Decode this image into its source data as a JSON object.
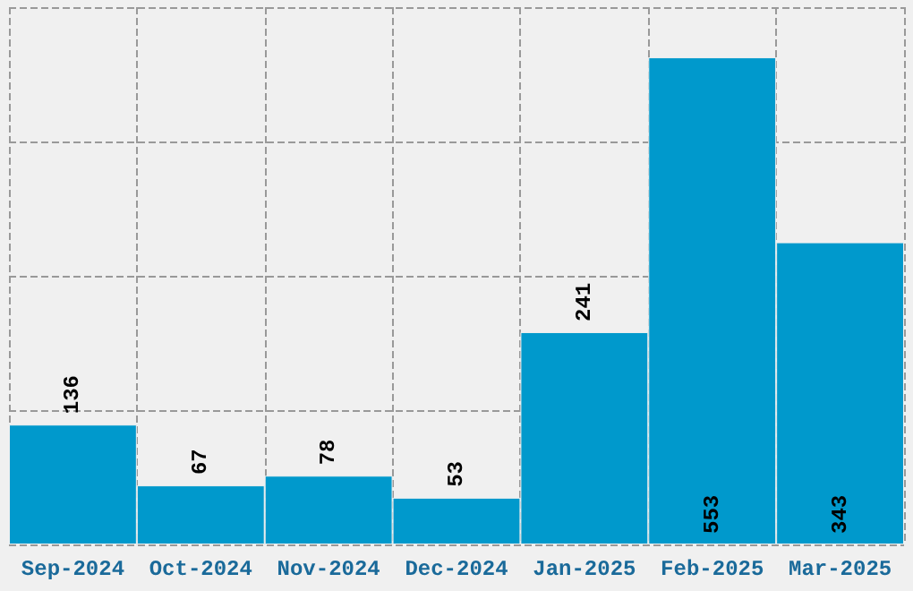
{
  "chart_data": {
    "type": "bar",
    "categories": [
      "Sep-2024",
      "Oct-2024",
      "Nov-2024",
      "Dec-2024",
      "Jan-2025",
      "Feb-2025",
      "Mar-2025"
    ],
    "values": [
      136,
      67,
      78,
      53,
      241,
      553,
      343
    ],
    "color": "#0099cc",
    "ylim": [
      0,
      610
    ],
    "yticks": [
      {
        "value": 0,
        "label": null
      },
      {
        "value": 152.5,
        "label": null
      },
      {
        "value": 305,
        "label": null
      },
      {
        "value": 457.5,
        "label": null
      },
      {
        "value": 610,
        "label": null
      }
    ],
    "grid": true,
    "data_labels": true,
    "tick_labels": "x"
  }
}
